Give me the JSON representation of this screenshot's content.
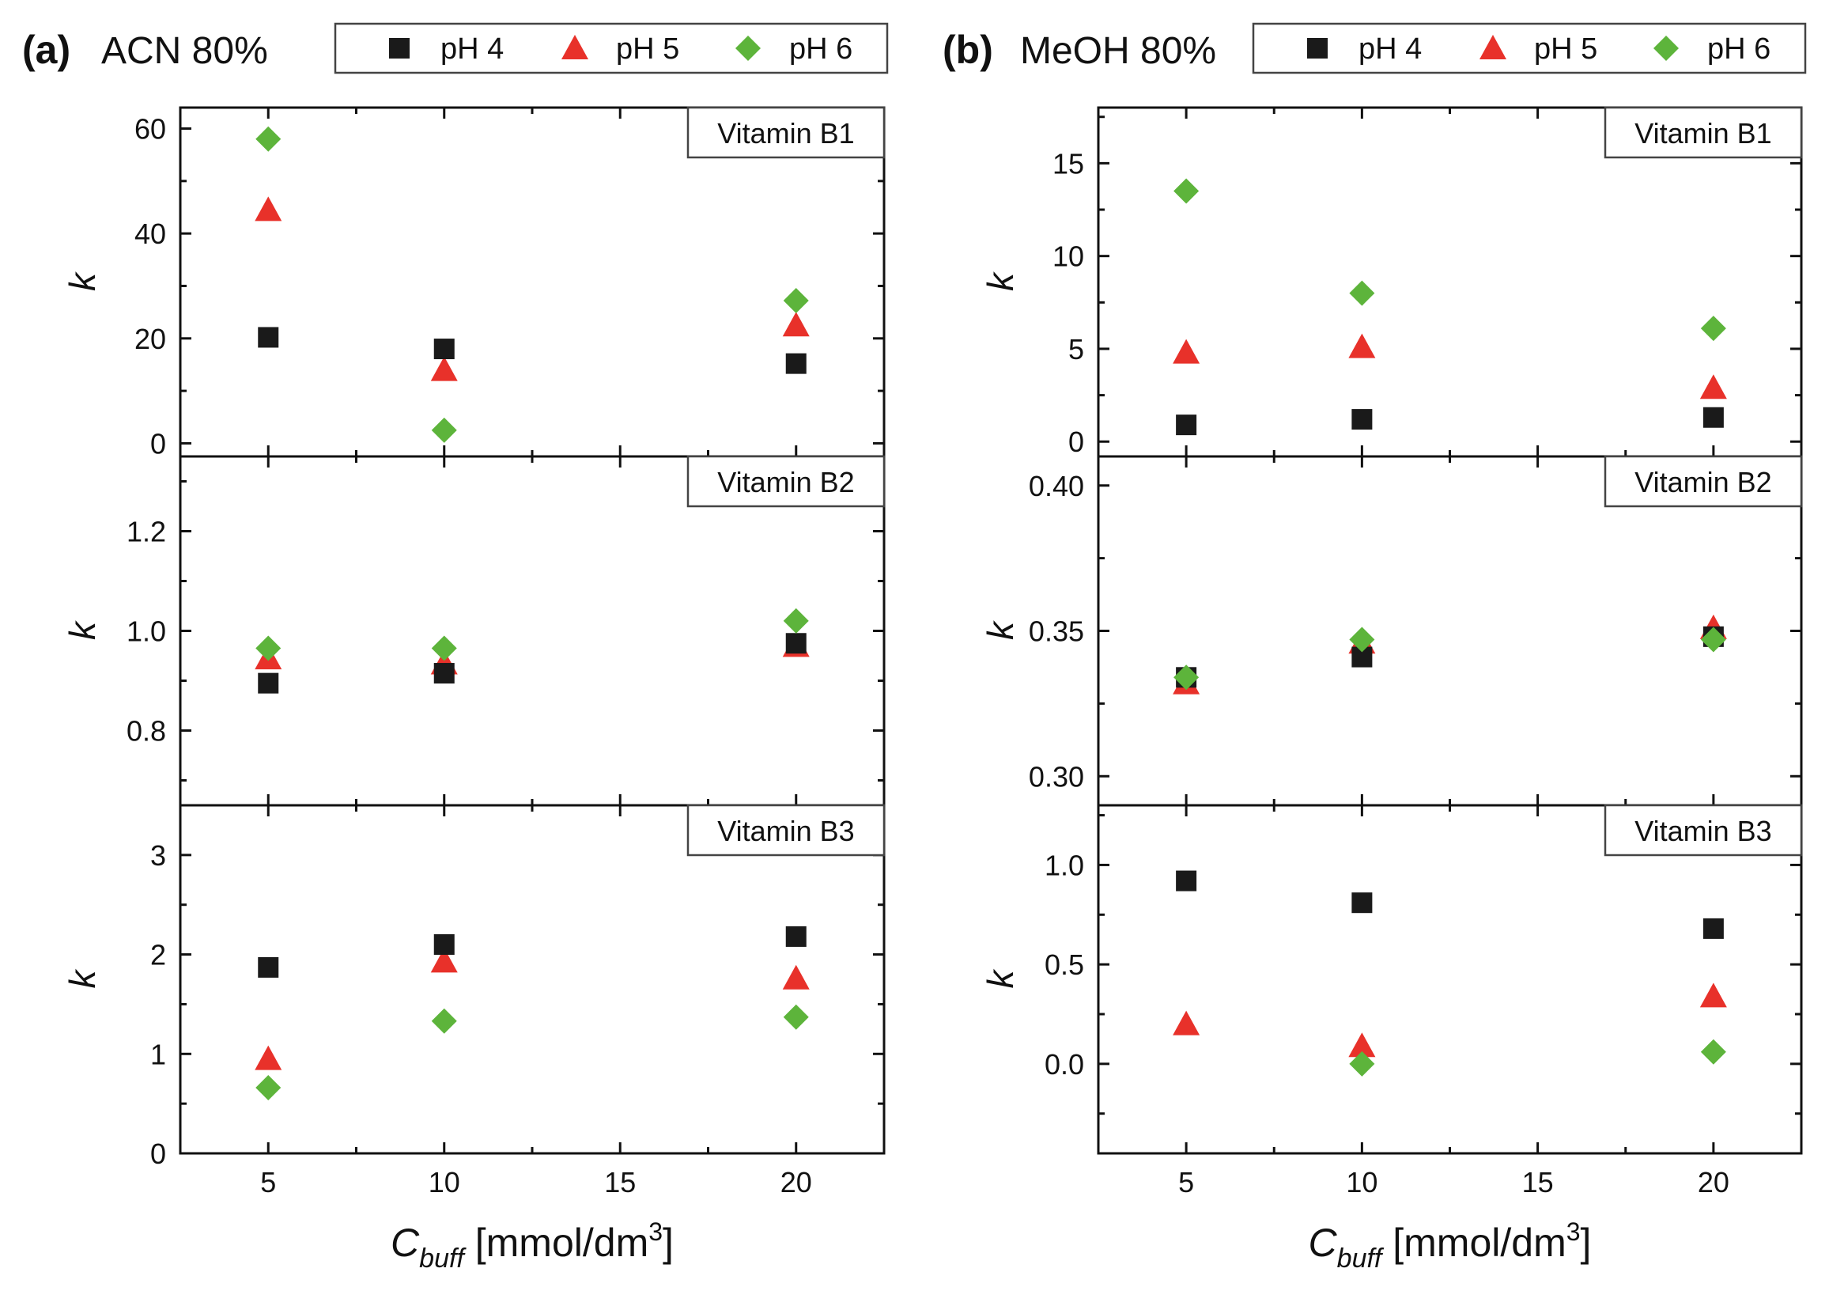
{
  "figure": {
    "series_styles": [
      {
        "name": "pH 4",
        "marker": "square",
        "color": "#1a1a1a"
      },
      {
        "name": "pH 5",
        "marker": "triangle",
        "color": "#e8312a"
      },
      {
        "name": "pH 6",
        "marker": "diamond",
        "color": "#5db43b"
      }
    ]
  },
  "chart_data": [
    {
      "id": "a",
      "type": "scatter",
      "panel_letter": "(a)",
      "title": "ACN 80%",
      "legend": [
        "pH 4",
        "pH 5",
        "pH 6"
      ],
      "xlabel_main": "C",
      "xlabel_sub": "buff",
      "xlabel_rest": " [mmol/dm",
      "xlabel_sup": "3",
      "xlabel_close": "]",
      "xlim": [
        2.5,
        22.5
      ],
      "xticks": [
        5,
        10,
        15,
        20
      ],
      "subplots": [
        {
          "label": "Vitamin B1",
          "ylabel": "k",
          "ylim": [
            -2.5,
            64
          ],
          "yticks": [
            0,
            20,
            40,
            60
          ],
          "ytick_decimals": 0,
          "x": [
            5,
            10,
            20
          ],
          "series": [
            {
              "name": "pH 4",
              "values": [
                20.2,
                18.0,
                15.2
              ]
            },
            {
              "name": "pH 5",
              "values": [
                44.5,
                14.0,
                22.5
              ]
            },
            {
              "name": "pH 6",
              "values": [
                58.0,
                2.5,
                27.2
              ]
            }
          ]
        },
        {
          "label": "Vitamin B2",
          "ylabel": "k",
          "ylim": [
            0.65,
            1.35
          ],
          "yticks": [
            0.8,
            1.0,
            1.2
          ],
          "ytick_decimals": 1,
          "x": [
            5,
            10,
            20
          ],
          "series": [
            {
              "name": "pH 4",
              "values": [
                0.895,
                0.915,
                0.975
              ]
            },
            {
              "name": "pH 5",
              "values": [
                0.945,
                0.935,
                0.97
              ]
            },
            {
              "name": "pH 6",
              "values": [
                0.965,
                0.965,
                1.02
              ]
            }
          ]
        },
        {
          "label": "Vitamin B3",
          "ylabel": "k",
          "ylim": [
            0,
            3.5
          ],
          "yticks": [
            0,
            1,
            2,
            3
          ],
          "ytick_decimals": 0,
          "x": [
            5,
            10,
            20
          ],
          "series": [
            {
              "name": "pH 4",
              "values": [
                1.87,
                2.1,
                2.18
              ]
            },
            {
              "name": "pH 5",
              "values": [
                0.95,
                1.93,
                1.76
              ]
            },
            {
              "name": "pH 6",
              "values": [
                0.66,
                1.33,
                1.37
              ]
            }
          ]
        }
      ]
    },
    {
      "id": "b",
      "type": "scatter",
      "panel_letter": "(b)",
      "title": "MeOH 80%",
      "legend": [
        "pH 4",
        "pH 5",
        "pH 6"
      ],
      "xlabel_main": "C",
      "xlabel_sub": "buff",
      "xlabel_rest": " [mmol/dm",
      "xlabel_sup": "3",
      "xlabel_close": "]",
      "xlim": [
        2.5,
        22.5
      ],
      "xticks": [
        5,
        10,
        15,
        20
      ],
      "subplots": [
        {
          "label": "Vitamin B1",
          "ylabel": "k",
          "ylim": [
            -0.8,
            18
          ],
          "yticks": [
            0,
            5,
            10,
            15
          ],
          "ytick_decimals": 0,
          "x": [
            5,
            10,
            20
          ],
          "series": [
            {
              "name": "pH 4",
              "values": [
                0.9,
                1.2,
                1.3
              ]
            },
            {
              "name": "pH 5",
              "values": [
                4.8,
                5.1,
                2.9
              ]
            },
            {
              "name": "pH 6",
              "values": [
                13.5,
                8.0,
                6.1
              ]
            }
          ]
        },
        {
          "label": "Vitamin B2",
          "ylabel": "k",
          "ylim": [
            0.29,
            0.41
          ],
          "yticks": [
            0.3,
            0.35,
            0.4
          ],
          "ytick_decimals": 2,
          "x": [
            5,
            10,
            20
          ],
          "series": [
            {
              "name": "pH 4",
              "values": [
                0.334,
                0.341,
                0.348
              ]
            },
            {
              "name": "pH 5",
              "values": [
                0.332,
                0.346,
                0.351
              ]
            },
            {
              "name": "pH 6",
              "values": [
                0.334,
                0.347,
                0.347
              ]
            }
          ]
        },
        {
          "label": "Vitamin B3",
          "ylabel": "k",
          "ylim": [
            -0.45,
            1.3
          ],
          "yticks": [
            0.0,
            0.5,
            1.0
          ],
          "ytick_decimals": 1,
          "x": [
            5,
            10,
            20
          ],
          "series": [
            {
              "name": "pH 4",
              "values": [
                0.92,
                0.81,
                0.68
              ]
            },
            {
              "name": "pH 5",
              "values": [
                0.2,
                0.09,
                0.34
              ]
            },
            {
              "name": "pH 6",
              "values": [
                null,
                0.0,
                0.06
              ]
            }
          ]
        }
      ]
    }
  ]
}
